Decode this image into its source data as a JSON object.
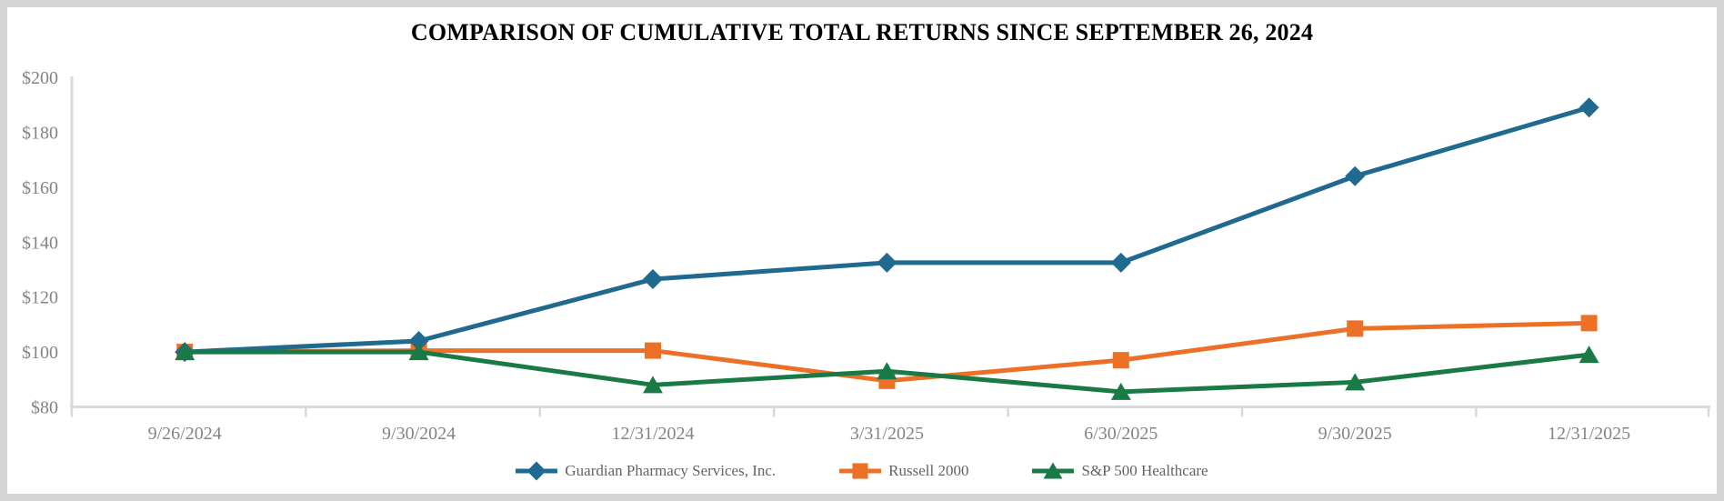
{
  "chart_data": {
    "type": "line",
    "title": "COMPARISON OF CUMULATIVE TOTAL RETURNS SINCE SEPTEMBER 26, 2024",
    "categories": [
      "9/26/2024",
      "9/30/2024",
      "12/31/2024",
      "3/31/2025",
      "6/30/2025",
      "9/30/2025",
      "12/31/2025"
    ],
    "series": [
      {
        "id": "guardian-pharmacy",
        "name": "Guardian Pharmacy Services, Inc.",
        "marker": "diamond",
        "color": "#20698F",
        "values": [
          100,
          104,
          126.5,
          132.5,
          132.5,
          164,
          189
        ]
      },
      {
        "id": "russell-2000",
        "name": "Russell 2000",
        "marker": "square",
        "color": "#EC7126",
        "values": [
          100,
          100.5,
          100.5,
          89.5,
          97,
          108.5,
          110.5
        ]
      },
      {
        "id": "sp-500-healthcare",
        "name": "S&P 500 Healthcare",
        "marker": "triangle",
        "color": "#1A7A46",
        "values": [
          100,
          100,
          88,
          93,
          85.5,
          89,
          99
        ]
      }
    ],
    "y_tick_labels": [
      "$200",
      "$180",
      "$160",
      "$140",
      "$120",
      "$100",
      "$80"
    ],
    "ylim": [
      80,
      200
    ],
    "grid": false,
    "legend_position": "bottom",
    "colors": {
      "axis": "#D9D9D9",
      "tick_label": "#848484",
      "legend_label": "#636363",
      "title": "#000000",
      "background": "#FFFFFF",
      "frame_border": "#D5D5D5"
    }
  }
}
